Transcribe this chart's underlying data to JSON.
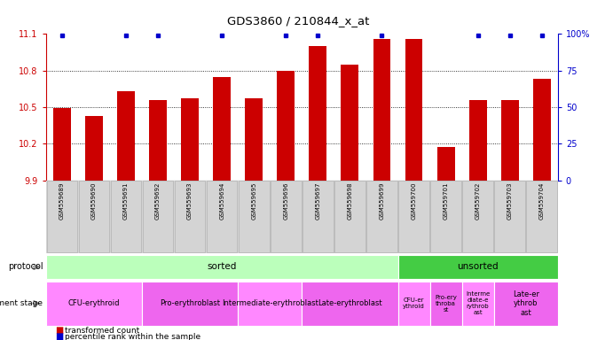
{
  "title": "GDS3860 / 210844_x_at",
  "samples": [
    "GSM559689",
    "GSM559690",
    "GSM559691",
    "GSM559692",
    "GSM559693",
    "GSM559694",
    "GSM559695",
    "GSM559696",
    "GSM559697",
    "GSM559698",
    "GSM559699",
    "GSM559700",
    "GSM559701",
    "GSM559702",
    "GSM559703",
    "GSM559704"
  ],
  "bar_values": [
    10.49,
    10.43,
    10.63,
    10.56,
    10.57,
    10.75,
    10.57,
    10.8,
    11.0,
    10.85,
    11.06,
    11.06,
    10.17,
    10.56,
    10.56,
    10.73
  ],
  "percentile_markers": [
    true,
    false,
    true,
    true,
    false,
    true,
    false,
    true,
    true,
    false,
    true,
    false,
    false,
    true,
    true,
    true
  ],
  "bar_color": "#cc0000",
  "marker_color": "#0000cc",
  "ymin": 9.9,
  "ymax": 11.1,
  "y_ticks_left": [
    9.9,
    10.2,
    10.5,
    10.8,
    11.1
  ],
  "y_ticks_right": [
    0,
    25,
    50,
    75,
    100
  ],
  "grid_values": [
    10.2,
    10.5,
    10.8
  ],
  "protocol_data": [
    {
      "label": "sorted",
      "start": 0,
      "end": 11,
      "color": "#bbffbb"
    },
    {
      "label": "unsorted",
      "start": 11,
      "end": 16,
      "color": "#44cc44"
    }
  ],
  "stage_data": [
    {
      "label": "CFU-erythroid",
      "start": 0,
      "end": 3,
      "color": "#ff88ff"
    },
    {
      "label": "Pro-erythroblast",
      "start": 3,
      "end": 6,
      "color": "#ee66ee"
    },
    {
      "label": "Intermediate-erythroblast",
      "start": 6,
      "end": 8,
      "color": "#ff88ff"
    },
    {
      "label": "Late-erythroblast",
      "start": 8,
      "end": 11,
      "color": "#ee66ee"
    },
    {
      "label": "CFU-er\nythroid",
      "start": 11,
      "end": 12,
      "color": "#ff88ff"
    },
    {
      "label": "Pro-ery\nthroba\nst",
      "start": 12,
      "end": 13,
      "color": "#ee66ee"
    },
    {
      "label": "Interme\ndiate-e\nrythrob\nast",
      "start": 13,
      "end": 14,
      "color": "#ff88ff"
    },
    {
      "label": "Late-er\nythrob\nast",
      "start": 14,
      "end": 16,
      "color": "#ee66ee"
    }
  ],
  "legend_items": [
    {
      "label": "transformed count",
      "color": "#cc0000"
    },
    {
      "label": "percentile rank within the sample",
      "color": "#0000cc"
    }
  ]
}
